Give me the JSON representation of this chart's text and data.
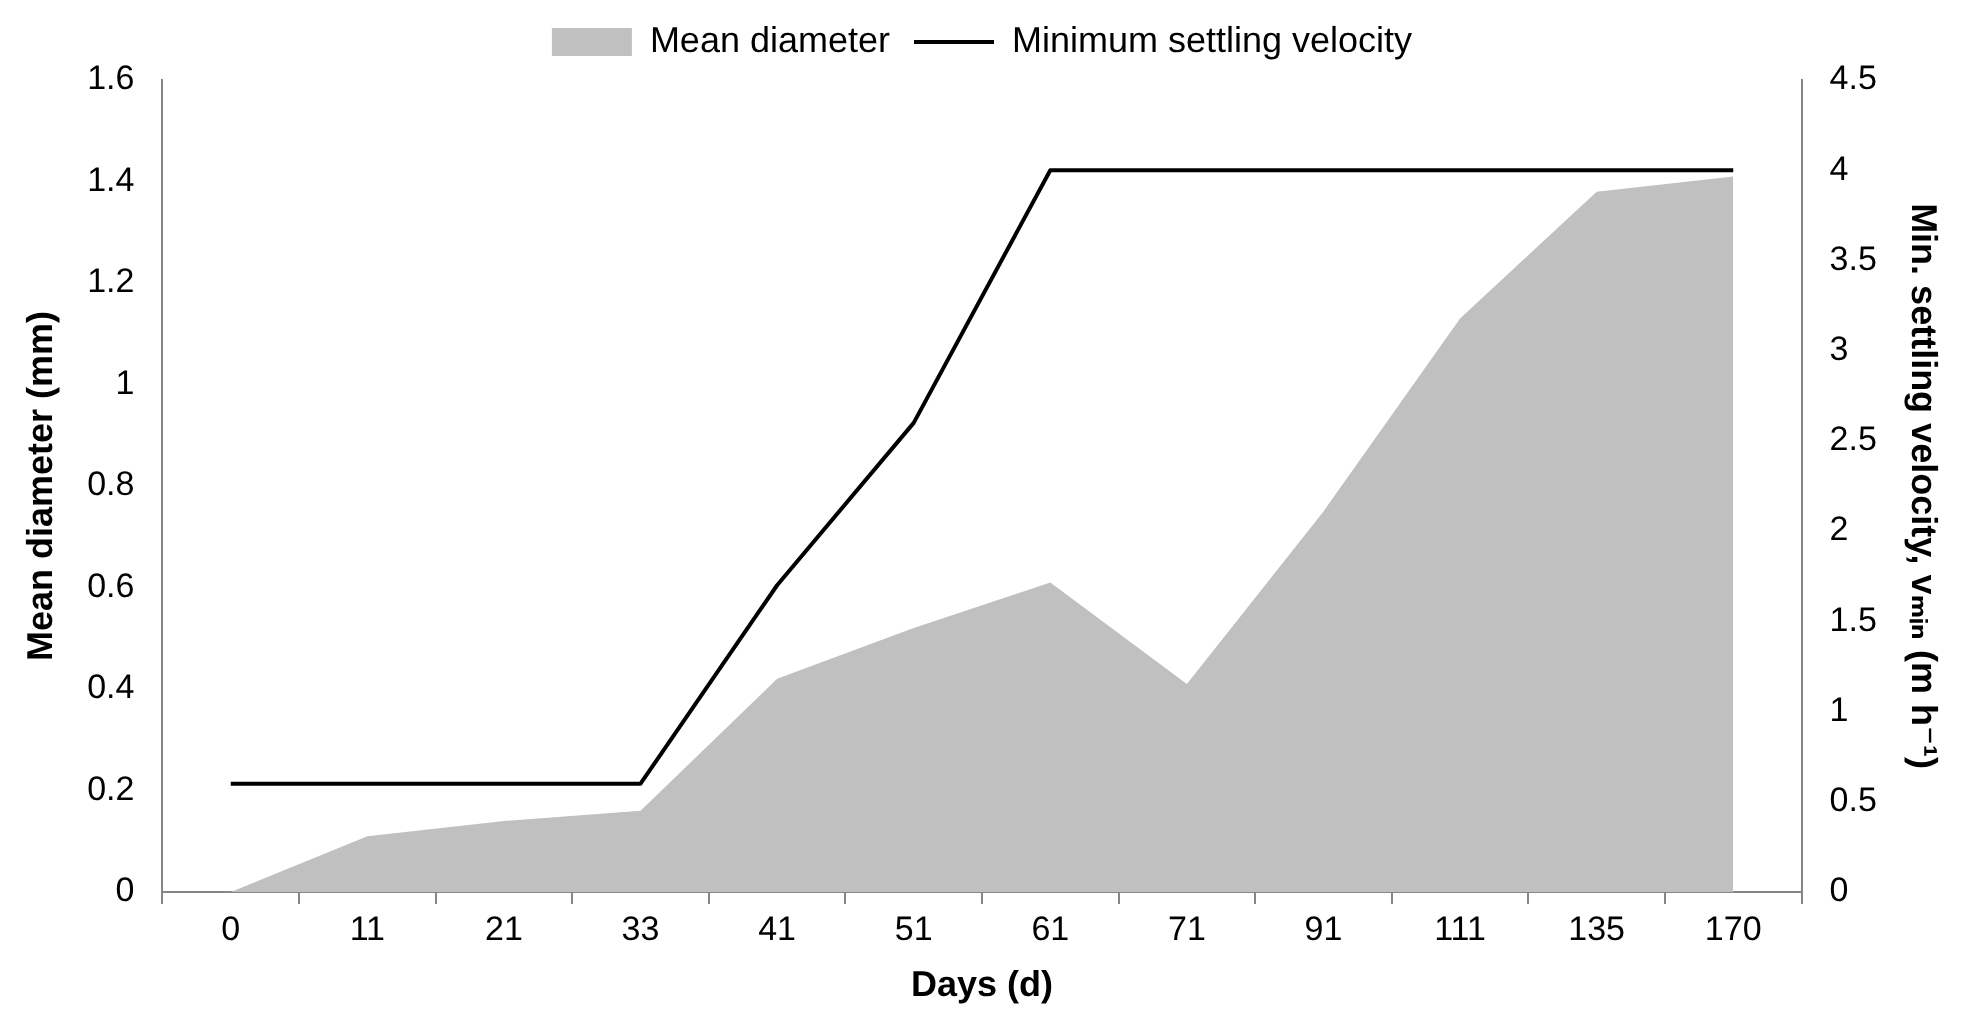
{
  "chart_data": {
    "type": "area",
    "xlabel": "Days (d)",
    "ylabel": "Mean diameter (mm)",
    "y2label": "Min. settling velocity, vₘᵢₙ (m h⁻¹)",
    "categories": [
      "0",
      "11",
      "21",
      "33",
      "41",
      "51",
      "61",
      "71",
      "91",
      "111",
      "135",
      "170"
    ],
    "series": [
      {
        "name": "Mean diameter",
        "color": "#c0c0c0",
        "values": [
          0,
          0.11,
          0.14,
          0.16,
          0.42,
          0.52,
          0.61,
          0.41,
          0.75,
          1.13,
          1.38,
          1.41
        ]
      },
      {
        "name": "Minimum settling velocity",
        "type": "line",
        "axis": "y2",
        "color": "#000000",
        "values": [
          0.6,
          0.6,
          0.6,
          0.6,
          1.7,
          2.6,
          4,
          4,
          4,
          4,
          4,
          4
        ]
      }
    ],
    "ylim": [
      0,
      1.6
    ],
    "yticks": [
      0,
      0.2,
      0.4,
      0.6,
      0.8,
      1,
      1.2,
      1.4,
      1.6
    ],
    "y2lim": [
      0,
      4.5
    ],
    "y2ticks": [
      0,
      0.5,
      1,
      1.5,
      2,
      2.5,
      3,
      3.5,
      4,
      4.5
    ],
    "grid": false,
    "legend": "top",
    "marker": "none"
  }
}
